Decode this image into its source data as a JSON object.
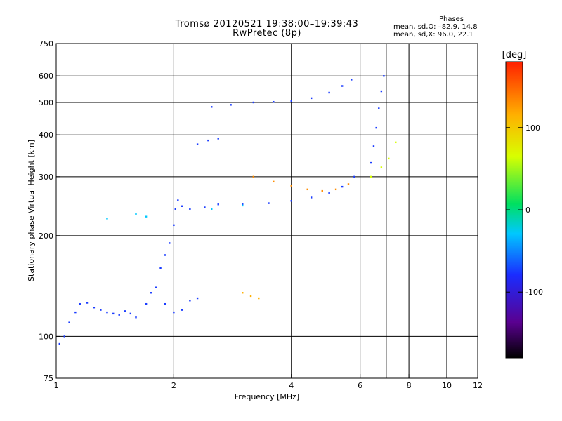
{
  "title_line1": "Tromsø 20120521 19:38:00–19:39:43",
  "title_line2": "RwPretec (8p)",
  "phases": {
    "title": "Phases",
    "line_o": "mean, sd,O: –82.9, 14.8",
    "line_x": "mean, sd,X:  96.0, 22.1"
  },
  "chart_data": {
    "type": "scatter",
    "xlabel": "Frequency [MHz]",
    "ylabel": "Stationary phase Virtual Height [km]",
    "x_scale": "log",
    "y_scale": "log",
    "xlim": [
      1,
      12
    ],
    "ylim": [
      75,
      750
    ],
    "x_ticks": [
      1,
      2,
      4,
      6,
      8,
      10,
      12
    ],
    "y_ticks": [
      75,
      100,
      200,
      300,
      400,
      500,
      600,
      750
    ],
    "x_gridlines": [
      2,
      4,
      6,
      7,
      8,
      10
    ],
    "y_gridlines": [
      100,
      200,
      300,
      400,
      500,
      600
    ],
    "grid": true,
    "colorbar": {
      "label": "[deg]",
      "range": [
        -180,
        180
      ],
      "ticks": [
        100,
        0,
        -100
      ],
      "colors": [
        "#000000",
        "#5a0090",
        "#1a2cff",
        "#00c8ff",
        "#00e060",
        "#d8ff00",
        "#ffb000",
        "#ff2000"
      ]
    },
    "series": [
      {
        "color": "#1a3cff",
        "points": [
          [
            1.02,
            95
          ],
          [
            1.05,
            100
          ],
          [
            1.08,
            110
          ],
          [
            1.12,
            118
          ],
          [
            1.15,
            125
          ],
          [
            1.2,
            126
          ],
          [
            1.25,
            122
          ],
          [
            1.3,
            120
          ],
          [
            1.35,
            118
          ],
          [
            1.4,
            117
          ],
          [
            1.45,
            116
          ],
          [
            1.5,
            119
          ],
          [
            1.55,
            117
          ],
          [
            1.6,
            114
          ],
          [
            1.7,
            125
          ],
          [
            1.75,
            135
          ],
          [
            1.8,
            140
          ],
          [
            1.9,
            125
          ],
          [
            2.0,
            118
          ],
          [
            2.1,
            120
          ],
          [
            2.2,
            128
          ],
          [
            2.3,
            130
          ]
        ]
      },
      {
        "color": "#1a3cff",
        "points": [
          [
            1.85,
            160
          ],
          [
            1.9,
            175
          ],
          [
            1.95,
            190
          ],
          [
            2.0,
            215
          ],
          [
            2.02,
            240
          ],
          [
            2.05,
            255
          ],
          [
            2.1,
            245
          ],
          [
            2.2,
            240
          ],
          [
            2.4,
            243
          ],
          [
            2.6,
            248
          ]
        ]
      },
      {
        "color": "#1a3cff",
        "points": [
          [
            2.5,
            485
          ],
          [
            2.8,
            492
          ],
          [
            3.2,
            500
          ],
          [
            3.6,
            502
          ],
          [
            4.0,
            505
          ],
          [
            4.5,
            515
          ],
          [
            5.0,
            535
          ],
          [
            5.4,
            560
          ],
          [
            5.7,
            585
          ]
        ]
      },
      {
        "color": "#1a3cff",
        "points": [
          [
            2.3,
            375
          ],
          [
            2.45,
            385
          ],
          [
            2.6,
            390
          ]
        ]
      },
      {
        "color": "#1a3cff",
        "points": [
          [
            3.0,
            248
          ],
          [
            3.5,
            250
          ],
          [
            4.0,
            254
          ],
          [
            4.5,
            260
          ],
          [
            5.0,
            268
          ],
          [
            5.4,
            280
          ],
          [
            5.8,
            300
          ]
        ]
      },
      {
        "color": "#1a3cff",
        "points": [
          [
            6.4,
            330
          ],
          [
            6.5,
            370
          ],
          [
            6.6,
            420
          ],
          [
            6.7,
            480
          ],
          [
            6.8,
            540
          ],
          [
            6.9,
            600
          ]
        ]
      },
      {
        "color": "#ff8c00",
        "points": [
          [
            3.2,
            300
          ],
          [
            3.6,
            290
          ],
          [
            4.0,
            282
          ],
          [
            4.4,
            275
          ],
          [
            4.8,
            272
          ],
          [
            5.2,
            275
          ],
          [
            5.6,
            285
          ]
        ]
      },
      {
        "color": "#d8ff00",
        "points": [
          [
            6.4,
            300
          ],
          [
            6.8,
            320
          ],
          [
            7.1,
            340
          ],
          [
            7.4,
            380
          ]
        ]
      },
      {
        "color": "#ffb000",
        "points": [
          [
            3.0,
            135
          ],
          [
            3.15,
            132
          ],
          [
            3.3,
            130
          ]
        ]
      },
      {
        "color": "#00c8ff",
        "points": [
          [
            1.35,
            225
          ],
          [
            1.6,
            232
          ],
          [
            1.7,
            228
          ],
          [
            2.5,
            240
          ],
          [
            3.0,
            246
          ]
        ]
      }
    ]
  }
}
